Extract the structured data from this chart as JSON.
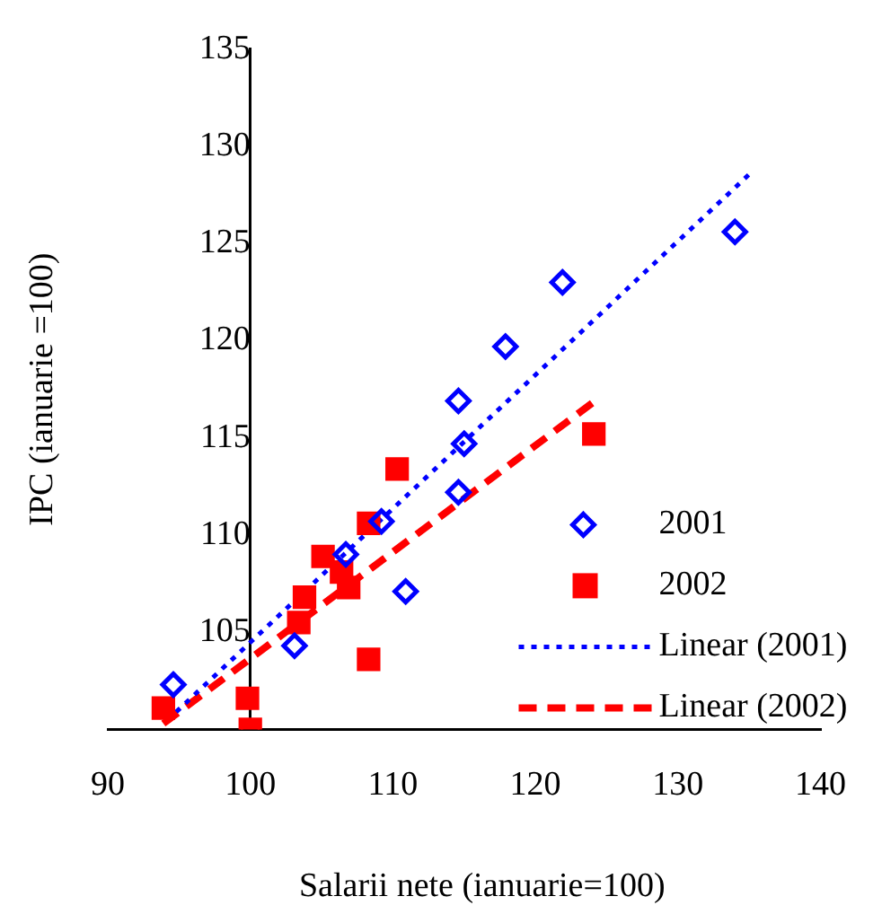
{
  "chart_data": {
    "type": "scatter",
    "xlabel": "Salarii nete (ianuarie=100)",
    "ylabel": "IPC (ianuarie =100)",
    "xlim": [
      90,
      140
    ],
    "xticks": [
      90,
      100,
      110,
      120,
      130,
      140
    ],
    "ylim": [
      100,
      135
    ],
    "yticks": [
      105,
      110,
      115,
      120,
      125,
      130,
      135
    ],
    "grid": false,
    "legend": "bottom right",
    "series": [
      {
        "name": "2001",
        "type": "scatter",
        "color": "#0000ff",
        "marker": "diamond",
        "x": [
          94.6,
          103.1,
          106.7,
          109.2,
          110.9,
          114.6,
          115.0,
          114.6,
          117.9,
          121.9,
          134.0
        ],
        "values": [
          102.3,
          104.3,
          109.0,
          110.7,
          107.1,
          116.9,
          114.7,
          112.2,
          119.7,
          123.0,
          125.6
        ]
      },
      {
        "name": "2002",
        "type": "scatter",
        "color": "#ff0000",
        "marker": "square",
        "x": [
          93.9,
          99.8,
          100,
          103.4,
          103.8,
          105.1,
          106.4,
          106.9,
          108.3,
          108.3,
          110.3,
          124.1
        ],
        "values": [
          101.1,
          101.6,
          100,
          105.5,
          106.8,
          108.9,
          108.1,
          107.3,
          103.6,
          110.6,
          113.4,
          115.2
        ]
      },
      {
        "name": "Linear (2001)",
        "type": "line",
        "color": "#0000ff",
        "line_style": "dotted",
        "x": [
          94.8,
          135.2
        ],
        "values": [
          100.9,
          128.7
        ]
      },
      {
        "name": "Linear (2002)",
        "type": "line",
        "color": "#ff0000",
        "line_style": "dashed",
        "x": [
          93.9,
          124.0
        ],
        "values": [
          100.3,
          116.8
        ]
      }
    ]
  }
}
